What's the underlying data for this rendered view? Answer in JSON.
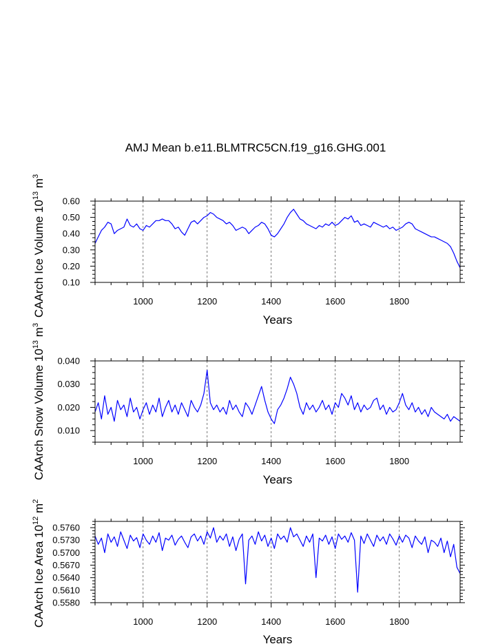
{
  "figure": {
    "title": "AMJ Mean b.e11.BLMTRC5CN.f19_g16.GHG.001"
  },
  "colors": {
    "line": "#0000ff",
    "axis": "#000000",
    "grid": "#555555"
  },
  "chart_data": [
    {
      "type": "line",
      "xlabel": "Years",
      "ylabel": "CAArch Ice Volume 10^13 m^3",
      "ylabel_parts": {
        "main": "CAArch Ice Volume 10",
        "exp": "13",
        "unit": " m",
        "unit_exp": "3"
      },
      "xlim": [
        850,
        1990
      ],
      "ylim": [
        0.1,
        0.6
      ],
      "xticks": [
        1000,
        1200,
        1400,
        1600,
        1800
      ],
      "xtick_labels": [
        "1000",
        "1200",
        "1400",
        "1600",
        "1800"
      ],
      "yticks": [
        0.1,
        0.2,
        0.3,
        0.4,
        0.5,
        0.6
      ],
      "ytick_labels": [
        "0.10",
        "0.20",
        "0.30",
        "0.40",
        "0.50",
        "0.60"
      ],
      "grid": "vertical dashed at x ticks",
      "series": [
        {
          "x": [
            850,
            860,
            870,
            880,
            890,
            900,
            910,
            920,
            930,
            940,
            950,
            960,
            970,
            980,
            990,
            1000,
            1010,
            1020,
            1030,
            1040,
            1050,
            1060,
            1070,
            1080,
            1090,
            1100,
            1110,
            1120,
            1130,
            1140,
            1150,
            1160,
            1170,
            1180,
            1190,
            1200,
            1210,
            1220,
            1230,
            1240,
            1250,
            1260,
            1270,
            1280,
            1290,
            1300,
            1310,
            1320,
            1330,
            1340,
            1350,
            1360,
            1370,
            1380,
            1390,
            1400,
            1410,
            1420,
            1430,
            1440,
            1450,
            1460,
            1470,
            1480,
            1490,
            1500,
            1510,
            1520,
            1530,
            1540,
            1550,
            1560,
            1570,
            1580,
            1590,
            1600,
            1610,
            1620,
            1630,
            1640,
            1650,
            1660,
            1670,
            1680,
            1690,
            1700,
            1710,
            1720,
            1730,
            1740,
            1750,
            1760,
            1770,
            1780,
            1790,
            1800,
            1810,
            1820,
            1830,
            1840,
            1850,
            1860,
            1870,
            1880,
            1890,
            1900,
            1910,
            1920,
            1930,
            1940,
            1950,
            1960,
            1970,
            1980,
            1990
          ],
          "y": [
            0.34,
            0.38,
            0.42,
            0.44,
            0.47,
            0.46,
            0.4,
            0.42,
            0.43,
            0.44,
            0.49,
            0.45,
            0.44,
            0.46,
            0.43,
            0.42,
            0.45,
            0.44,
            0.46,
            0.48,
            0.48,
            0.49,
            0.48,
            0.48,
            0.46,
            0.43,
            0.44,
            0.41,
            0.39,
            0.43,
            0.47,
            0.48,
            0.46,
            0.48,
            0.5,
            0.51,
            0.53,
            0.52,
            0.5,
            0.49,
            0.48,
            0.46,
            0.47,
            0.45,
            0.42,
            0.43,
            0.44,
            0.43,
            0.4,
            0.42,
            0.44,
            0.45,
            0.47,
            0.46,
            0.43,
            0.39,
            0.38,
            0.4,
            0.43,
            0.46,
            0.5,
            0.53,
            0.55,
            0.52,
            0.49,
            0.48,
            0.46,
            0.45,
            0.44,
            0.43,
            0.45,
            0.44,
            0.46,
            0.45,
            0.47,
            0.45,
            0.46,
            0.48,
            0.5,
            0.49,
            0.51,
            0.47,
            0.48,
            0.45,
            0.46,
            0.45,
            0.44,
            0.47,
            0.46,
            0.45,
            0.44,
            0.45,
            0.43,
            0.44,
            0.42,
            0.43,
            0.44,
            0.46,
            0.47,
            0.46,
            0.43,
            0.42,
            0.41,
            0.4,
            0.39,
            0.38,
            0.38,
            0.37,
            0.36,
            0.35,
            0.34,
            0.32,
            0.28,
            0.23,
            0.19
          ]
        }
      ]
    },
    {
      "type": "line",
      "xlabel": "Years",
      "ylabel": "CAArch Snow Volume 10^13 m^3",
      "ylabel_parts": {
        "main": "CAArch Snow Volume 10",
        "exp": "13",
        "unit": " m",
        "unit_exp": "3"
      },
      "xlim": [
        850,
        1990
      ],
      "ylim": [
        0.005,
        0.04
      ],
      "xticks": [
        1000,
        1200,
        1400,
        1600,
        1800
      ],
      "xtick_labels": [
        "1000",
        "1200",
        "1400",
        "1600",
        "1800"
      ],
      "yticks": [
        0.01,
        0.02,
        0.03,
        0.04
      ],
      "ytick_labels": [
        "0.010",
        "0.020",
        "0.030",
        "0.040"
      ],
      "grid": "vertical dashed at x ticks",
      "series": [
        {
          "x": [
            850,
            860,
            870,
            880,
            890,
            900,
            910,
            920,
            930,
            940,
            950,
            960,
            970,
            980,
            990,
            1000,
            1010,
            1020,
            1030,
            1040,
            1050,
            1060,
            1070,
            1080,
            1090,
            1100,
            1110,
            1120,
            1130,
            1140,
            1150,
            1160,
            1170,
            1180,
            1190,
            1200,
            1210,
            1220,
            1230,
            1240,
            1250,
            1260,
            1270,
            1280,
            1290,
            1300,
            1310,
            1320,
            1330,
            1340,
            1350,
            1360,
            1370,
            1380,
            1390,
            1400,
            1410,
            1420,
            1430,
            1440,
            1450,
            1460,
            1470,
            1480,
            1490,
            1500,
            1510,
            1520,
            1530,
            1540,
            1550,
            1560,
            1570,
            1580,
            1590,
            1600,
            1610,
            1620,
            1630,
            1640,
            1650,
            1660,
            1670,
            1680,
            1690,
            1700,
            1710,
            1720,
            1730,
            1740,
            1750,
            1760,
            1770,
            1780,
            1790,
            1800,
            1810,
            1820,
            1830,
            1840,
            1850,
            1860,
            1870,
            1880,
            1890,
            1900,
            1910,
            1920,
            1930,
            1940,
            1950,
            1960,
            1970,
            1980,
            1990
          ],
          "y": [
            0.018,
            0.022,
            0.015,
            0.025,
            0.017,
            0.02,
            0.014,
            0.023,
            0.019,
            0.021,
            0.016,
            0.024,
            0.018,
            0.02,
            0.015,
            0.019,
            0.022,
            0.017,
            0.021,
            0.018,
            0.024,
            0.016,
            0.02,
            0.023,
            0.018,
            0.021,
            0.017,
            0.022,
            0.019,
            0.016,
            0.023,
            0.02,
            0.018,
            0.021,
            0.026,
            0.036,
            0.022,
            0.019,
            0.021,
            0.018,
            0.02,
            0.017,
            0.023,
            0.019,
            0.021,
            0.018,
            0.016,
            0.022,
            0.02,
            0.017,
            0.021,
            0.025,
            0.029,
            0.023,
            0.018,
            0.015,
            0.013,
            0.019,
            0.021,
            0.024,
            0.028,
            0.033,
            0.03,
            0.026,
            0.02,
            0.017,
            0.022,
            0.019,
            0.021,
            0.018,
            0.02,
            0.023,
            0.019,
            0.021,
            0.017,
            0.022,
            0.02,
            0.026,
            0.024,
            0.021,
            0.025,
            0.019,
            0.022,
            0.018,
            0.021,
            0.019,
            0.02,
            0.023,
            0.024,
            0.019,
            0.021,
            0.017,
            0.02,
            0.018,
            0.019,
            0.022,
            0.026,
            0.021,
            0.019,
            0.022,
            0.018,
            0.02,
            0.017,
            0.019,
            0.016,
            0.02,
            0.018,
            0.017,
            0.016,
            0.015,
            0.017,
            0.014,
            0.016,
            0.015,
            0.014
          ]
        }
      ]
    },
    {
      "type": "line",
      "xlabel": "Years",
      "ylabel": "CAArch Ice Area 10^12 m^2",
      "ylabel_parts": {
        "main": "CAArch Ice Area 10",
        "exp": "12",
        "unit": " m",
        "unit_exp": "2"
      },
      "xlim": [
        850,
        1990
      ],
      "ylim": [
        0.558,
        0.5775
      ],
      "xticks": [
        1000,
        1200,
        1400,
        1600,
        1800
      ],
      "xtick_labels": [
        "1000",
        "1200",
        "1400",
        "1600",
        "1800"
      ],
      "yticks": [
        0.558,
        0.561,
        0.564,
        0.567,
        0.57,
        0.573,
        0.576
      ],
      "ytick_labels": [
        "0.5580",
        "0.5610",
        "0.5640",
        "0.5670",
        "0.5700",
        "0.5730",
        "0.5760"
      ],
      "grid": "vertical dashed at x ticks",
      "series": [
        {
          "x": [
            850,
            860,
            870,
            880,
            890,
            900,
            910,
            920,
            930,
            940,
            950,
            960,
            970,
            980,
            990,
            1000,
            1010,
            1020,
            1030,
            1040,
            1050,
            1060,
            1070,
            1080,
            1090,
            1100,
            1110,
            1120,
            1130,
            1140,
            1150,
            1160,
            1170,
            1180,
            1190,
            1200,
            1210,
            1220,
            1230,
            1240,
            1250,
            1260,
            1270,
            1280,
            1290,
            1300,
            1310,
            1320,
            1330,
            1340,
            1350,
            1360,
            1370,
            1380,
            1390,
            1400,
            1410,
            1420,
            1430,
            1440,
            1450,
            1460,
            1470,
            1480,
            1490,
            1500,
            1510,
            1520,
            1530,
            1540,
            1550,
            1560,
            1570,
            1580,
            1590,
            1600,
            1610,
            1620,
            1630,
            1640,
            1650,
            1660,
            1670,
            1680,
            1690,
            1700,
            1710,
            1720,
            1730,
            1740,
            1750,
            1760,
            1770,
            1780,
            1790,
            1800,
            1810,
            1820,
            1830,
            1840,
            1850,
            1860,
            1870,
            1880,
            1890,
            1900,
            1910,
            1920,
            1930,
            1940,
            1950,
            1960,
            1970,
            1980,
            1990
          ],
          "y": [
            0.574,
            0.572,
            0.5735,
            0.57,
            0.5745,
            0.5725,
            0.5738,
            0.5715,
            0.575,
            0.573,
            0.571,
            0.5742,
            0.5728,
            0.5736,
            0.5712,
            0.5745,
            0.573,
            0.572,
            0.574,
            0.5725,
            0.5748,
            0.5705,
            0.5735,
            0.573,
            0.5742,
            0.5718,
            0.5732,
            0.574,
            0.5725,
            0.5712,
            0.5738,
            0.5745,
            0.5728,
            0.574,
            0.572,
            0.575,
            0.5735,
            0.576,
            0.5725,
            0.574,
            0.573,
            0.5745,
            0.5715,
            0.5738,
            0.5705,
            0.5732,
            0.5745,
            0.5625,
            0.573,
            0.574,
            0.572,
            0.575,
            0.5728,
            0.5742,
            0.5715,
            0.5735,
            0.571,
            0.5745,
            0.5732,
            0.574,
            0.5725,
            0.576,
            0.5738,
            0.5745,
            0.573,
            0.5715,
            0.574,
            0.5725,
            0.5745,
            0.564,
            0.5735,
            0.5728,
            0.5742,
            0.572,
            0.5738,
            0.571,
            0.5745,
            0.5732,
            0.574,
            0.5725,
            0.5748,
            0.573,
            0.5605,
            0.574,
            0.5722,
            0.5745,
            0.573,
            0.5715,
            0.5742,
            0.5728,
            0.5738,
            0.572,
            0.5745,
            0.5733,
            0.5718,
            0.574,
            0.5725,
            0.5742,
            0.5735,
            0.5712,
            0.574,
            0.5728,
            0.572,
            0.5738,
            0.57,
            0.573,
            0.5725,
            0.5715,
            0.5735,
            0.57,
            0.5728,
            0.569,
            0.572,
            0.5665,
            0.565
          ]
        }
      ]
    }
  ]
}
